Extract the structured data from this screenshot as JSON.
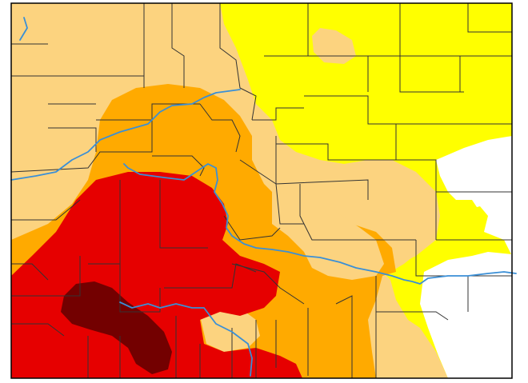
{
  "map": {
    "colors": {
      "background": "#ffffff",
      "border": "#000000",
      "county_line": "#333333",
      "river": "#3a8fd6",
      "none": "#ffffff",
      "d0": "#ffff00",
      "d1": "#fcd37f",
      "d2": "#ffaa00",
      "d3": "#e60000",
      "d4": "#730000"
    },
    "icons": {
      "rivers": "river-line-icon"
    }
  }
}
